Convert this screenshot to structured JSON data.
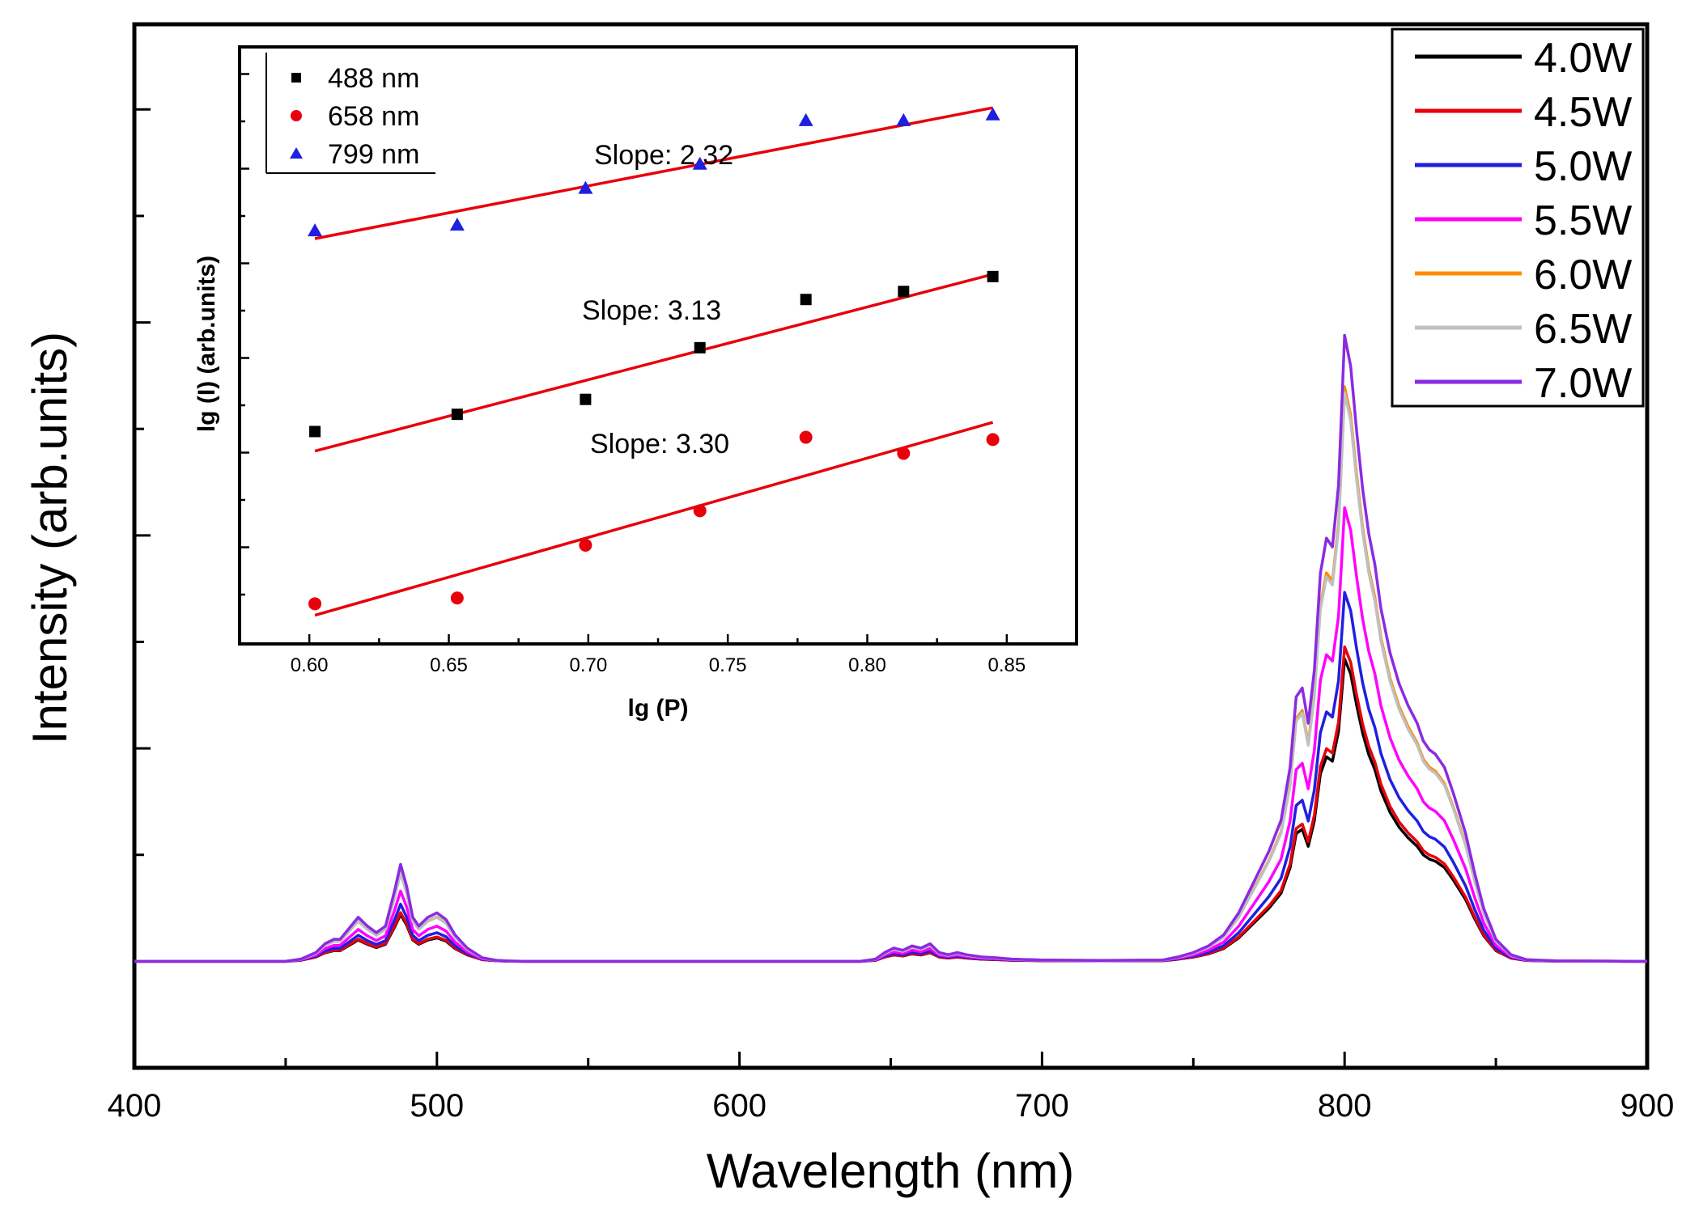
{
  "chart_data": [
    {
      "type": "line",
      "title": "",
      "xlabel": "Wavelength (nm)",
      "ylabel": "Intensity (arb.units)",
      "xlim": [
        400,
        900
      ],
      "ylim": [
        -0.5,
        4.4
      ],
      "x_ticks": [
        "400",
        "500",
        "600",
        "700",
        "800",
        "900"
      ],
      "y_tick_labels_shown": false,
      "legend_position": "top-right",
      "series": [
        {
          "name": "4.0W",
          "color": "#000000",
          "scale": 1.0
        },
        {
          "name": "4.5W",
          "color": "#e8000b",
          "scale": 1.04
        },
        {
          "name": "5.0W",
          "color": "#1f1fe0",
          "scale": 1.22
        },
        {
          "name": "5.5W",
          "color": "#ff00ff",
          "scale": 1.5
        },
        {
          "name": "6.0W",
          "color": "#ff8c00",
          "scale": 1.9
        },
        {
          "name": "6.5W",
          "color": "#c0c0c0",
          "scale": 1.88
        },
        {
          "name": "7.0W",
          "color": "#8a2be2",
          "scale": 2.07
        }
      ],
      "base_spectrum": {
        "x": [
          400,
          450,
          455,
          460,
          463,
          466,
          468,
          471,
          474,
          477,
          480,
          483,
          486,
          488,
          490,
          492,
          494,
          497,
          500,
          503,
          506,
          510,
          515,
          520,
          525,
          530,
          600,
          640,
          645,
          648,
          651,
          654,
          657,
          660,
          663,
          666,
          669,
          672,
          675,
          680,
          685,
          690,
          700,
          720,
          740,
          745,
          750,
          755,
          760,
          765,
          770,
          775,
          779,
          782,
          784,
          786,
          788,
          790,
          792,
          794,
          796,
          798,
          799,
          800,
          802,
          804,
          806,
          808,
          810,
          812,
          815,
          818,
          821,
          824,
          826,
          828,
          830,
          833,
          836,
          840,
          843,
          846,
          850,
          855,
          860,
          870,
          900
        ],
        "y": [
          0,
          0,
          0.005,
          0.02,
          0.04,
          0.05,
          0.05,
          0.075,
          0.1,
          0.08,
          0.065,
          0.08,
          0.16,
          0.22,
          0.17,
          0.1,
          0.08,
          0.1,
          0.11,
          0.095,
          0.06,
          0.03,
          0.008,
          0.002,
          0.0005,
          0,
          0,
          0,
          0.005,
          0.02,
          0.03,
          0.025,
          0.035,
          0.03,
          0.04,
          0.02,
          0.015,
          0.02,
          0.015,
          0.01,
          0.008,
          0.005,
          0.003,
          0.002,
          0.003,
          0.01,
          0.02,
          0.035,
          0.06,
          0.11,
          0.18,
          0.25,
          0.32,
          0.44,
          0.6,
          0.62,
          0.54,
          0.66,
          0.88,
          0.96,
          0.94,
          1.08,
          1.25,
          1.42,
          1.35,
          1.2,
          1.07,
          0.97,
          0.9,
          0.8,
          0.7,
          0.63,
          0.58,
          0.54,
          0.5,
          0.48,
          0.47,
          0.44,
          0.38,
          0.29,
          0.2,
          0.12,
          0.05,
          0.015,
          0.004,
          0.001,
          0
        ]
      }
    },
    {
      "type": "scatter",
      "title": "",
      "xlabel": "lg (P)",
      "ylabel": "lg (I) (arb.units)",
      "xlim": [
        0.575,
        0.875
      ],
      "ylim": [
        0.0,
        5.2
      ],
      "x_ticks": [
        "0.60",
        "0.65",
        "0.70",
        "0.75",
        "0.80",
        "0.85"
      ],
      "y_tick_labels_shown": false,
      "legend_position": "top-left",
      "series": [
        {
          "name": "488 nm",
          "marker": "square",
          "color": "#000000",
          "x": [
            0.602,
            0.653,
            0.699,
            0.74,
            0.778,
            0.813,
            0.845
          ],
          "y": [
            1.85,
            2.0,
            2.13,
            2.58,
            3.0,
            3.07,
            3.2
          ],
          "fit": {
            "label": "Slope: 3.13",
            "x0": 0.602,
            "y0": 1.68,
            "x1": 0.845,
            "y1": 3.22
          }
        },
        {
          "name": "658 nm",
          "marker": "circle",
          "color": "#e8000b",
          "x": [
            0.602,
            0.653,
            0.699,
            0.74,
            0.778,
            0.813,
            0.845
          ],
          "y": [
            0.35,
            0.4,
            0.86,
            1.16,
            1.8,
            1.66,
            1.78
          ],
          "fit": {
            "label": "Slope: 3.30",
            "x0": 0.602,
            "y0": 0.25,
            "x1": 0.845,
            "y1": 1.93
          }
        },
        {
          "name": "799 nm",
          "marker": "triangle",
          "color": "#1f1fe0",
          "x": [
            0.602,
            0.653,
            0.699,
            0.74,
            0.778,
            0.813,
            0.845
          ],
          "y": [
            3.6,
            3.65,
            3.97,
            4.18,
            4.56,
            4.56,
            4.61
          ],
          "fit": {
            "label": "Slope: 2.32",
            "x0": 0.602,
            "y0": 3.53,
            "x1": 0.845,
            "y1": 4.67
          }
        }
      ]
    }
  ]
}
